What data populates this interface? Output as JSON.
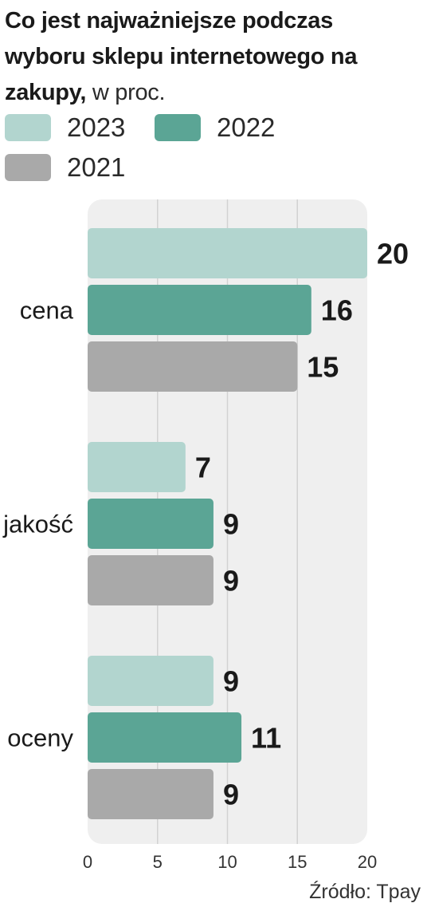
{
  "title": {
    "bold": "Co jest najważniejsze podczas wyboru sklepu internetowego na zakupy,",
    "unit": " w proc."
  },
  "legend": [
    {
      "label": "2023",
      "color": "#b2d5cf"
    },
    {
      "label": "2022",
      "color": "#5ba595"
    },
    {
      "label": "2021",
      "color": "#a9a9a9"
    }
  ],
  "source": "Źródło: Tpay",
  "chart_data": {
    "type": "bar",
    "orientation": "horizontal",
    "categories": [
      "cena",
      "jakość",
      "oceny"
    ],
    "series": [
      {
        "name": "2023",
        "values": [
          20,
          7,
          9
        ],
        "color": "#b2d5cf"
      },
      {
        "name": "2022",
        "values": [
          16,
          9,
          11
        ],
        "color": "#5ba595"
      },
      {
        "name": "2021",
        "values": [
          15,
          9,
          9
        ],
        "color": "#a9a9a9"
      }
    ],
    "xlim": [
      0,
      20
    ],
    "xticks": [
      0,
      5,
      10,
      15,
      20
    ],
    "grid": true,
    "data_labels": true,
    "legend_position": "top-left"
  }
}
